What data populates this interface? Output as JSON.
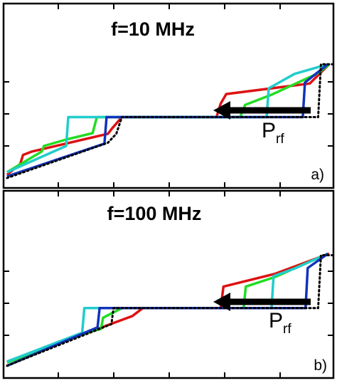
{
  "chart_data": [
    {
      "type": "line",
      "title": "f=10 MHz",
      "panel_label": "a)",
      "arrow_label": "P",
      "arrow_label_sub": "rf",
      "xlim": [
        0,
        474
      ],
      "ylim": [
        0,
        4
      ],
      "grid": false,
      "series": [
        {
          "color": "#000000",
          "dash": true,
          "x": [
            5,
            150,
            162,
            170,
            452,
            456,
            472
          ],
          "y": [
            0.0,
            1.1,
            1.38,
            1.9,
            1.9,
            3.55,
            3.55
          ]
        },
        {
          "color": "#dd1111",
          "x": [
            5,
            24,
            28,
            40,
            150,
            156,
            162,
            170,
            306,
            312,
            320,
            440,
            468
          ],
          "y": [
            0.1,
            0.44,
            0.72,
            0.82,
            1.38,
            1.55,
            1.7,
            1.9,
            1.9,
            2.32,
            2.62,
            2.95,
            3.55
          ]
        },
        {
          "color": "#22dd22",
          "x": [
            5,
            55,
            58,
            90,
            128,
            134,
            170,
            340,
            347,
            385,
            450,
            468
          ],
          "y": [
            0.18,
            0.83,
            1.0,
            1.2,
            1.4,
            1.9,
            1.9,
            1.9,
            2.28,
            2.6,
            3.25,
            3.55
          ]
        },
        {
          "color": "#22cccc",
          "x": [
            5,
            90,
            93,
            170,
            378,
            381,
            418,
            466
          ],
          "y": [
            0.18,
            1.0,
            1.9,
            1.9,
            1.9,
            2.8,
            3.25,
            3.55
          ]
        },
        {
          "color": "#1133bb",
          "x": [
            5,
            145,
            148,
            170,
            430,
            433,
            466
          ],
          "y": [
            0.05,
            1.07,
            1.9,
            1.9,
            1.9,
            2.98,
            3.55
          ]
        }
      ]
    },
    {
      "type": "line",
      "title": "f=100 MHz",
      "panel_label": "b)",
      "arrow_label": "P",
      "arrow_label_sub": "rf",
      "xlim": [
        0,
        474
      ],
      "ylim": [
        0,
        4
      ],
      "grid": false,
      "series": [
        {
          "color": "#000000",
          "dash": true,
          "x": [
            5,
            155,
            158,
            170,
            452,
            456,
            472
          ],
          "y": [
            0.05,
            1.35,
            1.85,
            1.85,
            1.85,
            3.5,
            3.5
          ]
        },
        {
          "color": "#dd1111",
          "x": [
            5,
            110,
            185,
            200,
            312,
            316,
            390,
            468
          ],
          "y": [
            0.18,
            1.0,
            1.6,
            1.85,
            1.85,
            2.52,
            2.92,
            3.55
          ]
        },
        {
          "color": "#22dd22",
          "x": [
            5,
            120,
            140,
            143,
            170,
            345,
            348,
            390,
            466
          ],
          "y": [
            0.15,
            1.08,
            1.2,
            1.55,
            1.85,
            1.85,
            2.52,
            2.82,
            3.55
          ]
        },
        {
          "color": "#22cccc",
          "x": [
            5,
            113,
            116,
            170,
            385,
            388,
            420,
            466
          ],
          "y": [
            0.18,
            1.08,
            1.85,
            1.85,
            1.85,
            2.85,
            3.1,
            3.55
          ]
        },
        {
          "color": "#1133bb",
          "x": [
            5,
            135,
            138,
            170,
            434,
            437,
            466
          ],
          "y": [
            0.05,
            1.25,
            1.85,
            1.85,
            1.85,
            3.1,
            3.55
          ]
        }
      ]
    }
  ]
}
